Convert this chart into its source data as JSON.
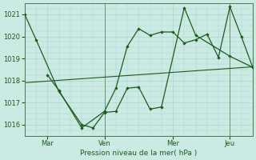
{
  "background_color": "#cceae4",
  "grid_color": "#aad4cc",
  "line_color": "#1a5c1a",
  "xlabel": "Pression niveau de la mer( hPa )",
  "ylim": [
    1015.5,
    1021.5
  ],
  "yticks": [
    1016,
    1017,
    1018,
    1019,
    1020,
    1021
  ],
  "xtick_labels": [
    "Mar",
    "Ven",
    "Mer",
    "Jeu"
  ],
  "xtick_positions": [
    2,
    7,
    13,
    18
  ],
  "xlim": [
    0,
    20
  ],
  "vlines": [
    7,
    18
  ],
  "line1_x": [
    0,
    1,
    3,
    5,
    7,
    8,
    9,
    10,
    11,
    12,
    13,
    14,
    15,
    18,
    19,
    20
  ],
  "line1_y": [
    1021.0,
    1019.85,
    1017.7,
    1016.1,
    1015.85,
    1016.6,
    1016.85,
    1017.7,
    1017.7,
    1016.8,
    1016.8,
    1021.4,
    1020.1,
    1019.0,
    1019.0,
    1018.6
  ],
  "line2_x": [
    1,
    3,
    5,
    7,
    8,
    9,
    10,
    11,
    12,
    13,
    14,
    15,
    16,
    17,
    18,
    19,
    20
  ],
  "line2_y": [
    1018.25,
    1017.55,
    1015.85,
    1016.6,
    1017.6,
    1019.8,
    1020.4,
    1020.0,
    1020.2,
    1020.2,
    1019.75,
    1019.85,
    1020.05,
    1019.05,
    1021.4,
    1020.0,
    1018.6
  ],
  "trend_x": [
    0,
    20
  ],
  "trend_y": [
    1017.85,
    1018.65
  ]
}
